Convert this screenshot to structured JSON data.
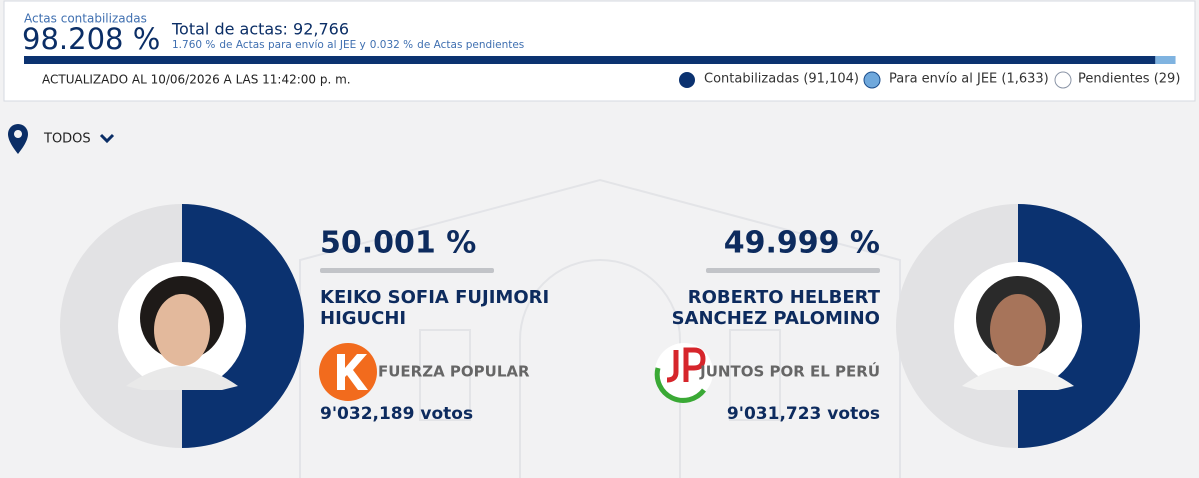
{
  "header": {
    "actas_label": "Actas contabilizadas",
    "actas_pct": {
      "value": 98.208,
      "label": "98.208 %"
    },
    "total": "Total de actas: 92,766",
    "jee_pct": {
      "value": 1.76,
      "label": "1.760 %"
    },
    "jee_text": "de Actas para envío al JEE y",
    "pend_pct": {
      "value": 0.032,
      "label": "0.032 %"
    },
    "pend_text": "de Actas pendientes",
    "updated": "ACTUALIZADO AL 10/06/2026 A LAS 11:42:00 p. m.",
    "legend": [
      "Contabilizadas (91,104)",
      "Para envío al JEE (1,633)",
      "Pendientes (29)"
    ]
  },
  "filter": "TODOS",
  "candidates": [
    {
      "pct": {
        "value": 50.001,
        "label": "50.001 %"
      },
      "name": [
        "KEIKO SOFIA FUJIMORI",
        "HIGUCHI"
      ],
      "party": "FUERZA POPULAR",
      "votes": "9'032,189 votos"
    },
    {
      "pct": {
        "value": 49.999,
        "label": "49.999 %"
      },
      "name": [
        "ROBERTO HELBERT",
        "SANCHEZ PALOMINO"
      ],
      "party": "JUNTOS POR EL PERÚ",
      "votes": "9'031,723 votos"
    }
  ]
}
